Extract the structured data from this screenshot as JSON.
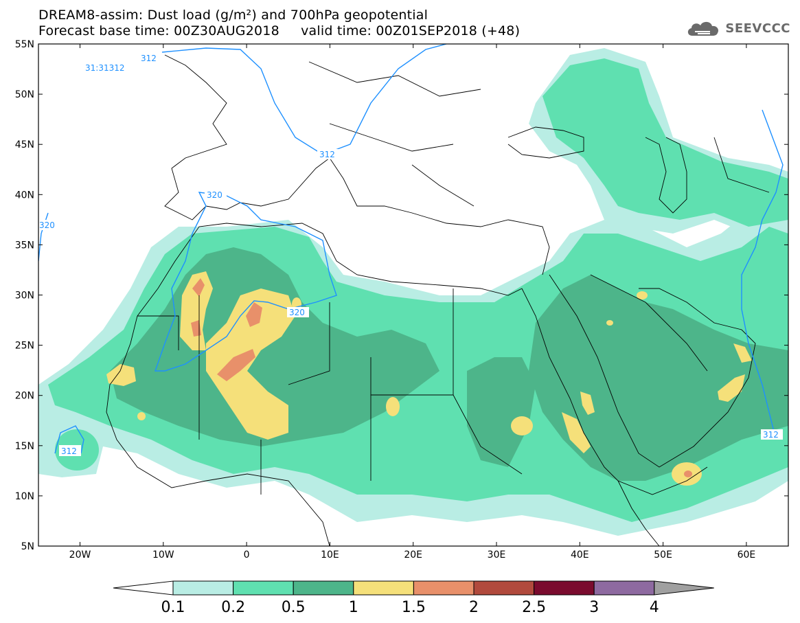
{
  "title": {
    "line1": "DREAM8-assim: Dust load (g/m²) and 700hPa geopotential",
    "line2": "Forecast base time: 00Z30AUG2018     valid time: 00Z01SEP2018 (+48)"
  },
  "brand": {
    "name": "SEEVCCC",
    "icon": "cloud-logo-icon"
  },
  "map": {
    "lat_labels": [
      "55N",
      "50N",
      "45N",
      "40N",
      "35N",
      "30N",
      "25N",
      "20N",
      "15N",
      "10N",
      "5N"
    ],
    "lon_labels": [
      "20W",
      "10W",
      "0",
      "10E",
      "20E",
      "30E",
      "40E",
      "50E",
      "60E"
    ],
    "contour_labels": [
      "31:31312",
      "312",
      "312",
      "320",
      "320",
      "320",
      "312",
      "312"
    ]
  },
  "legend": {
    "colors": [
      "#ffffff",
      "#b9ede4",
      "#5fe0b0",
      "#4db58a",
      "#f5e07a",
      "#e8906a",
      "#b14a3d",
      "#7a0b2e",
      "#8e6aa0",
      "#a0a0a0"
    ],
    "ticks": [
      "0.1",
      "0.2",
      "0.5",
      "1",
      "1.5",
      "2",
      "2.5",
      "3",
      "4"
    ]
  }
}
